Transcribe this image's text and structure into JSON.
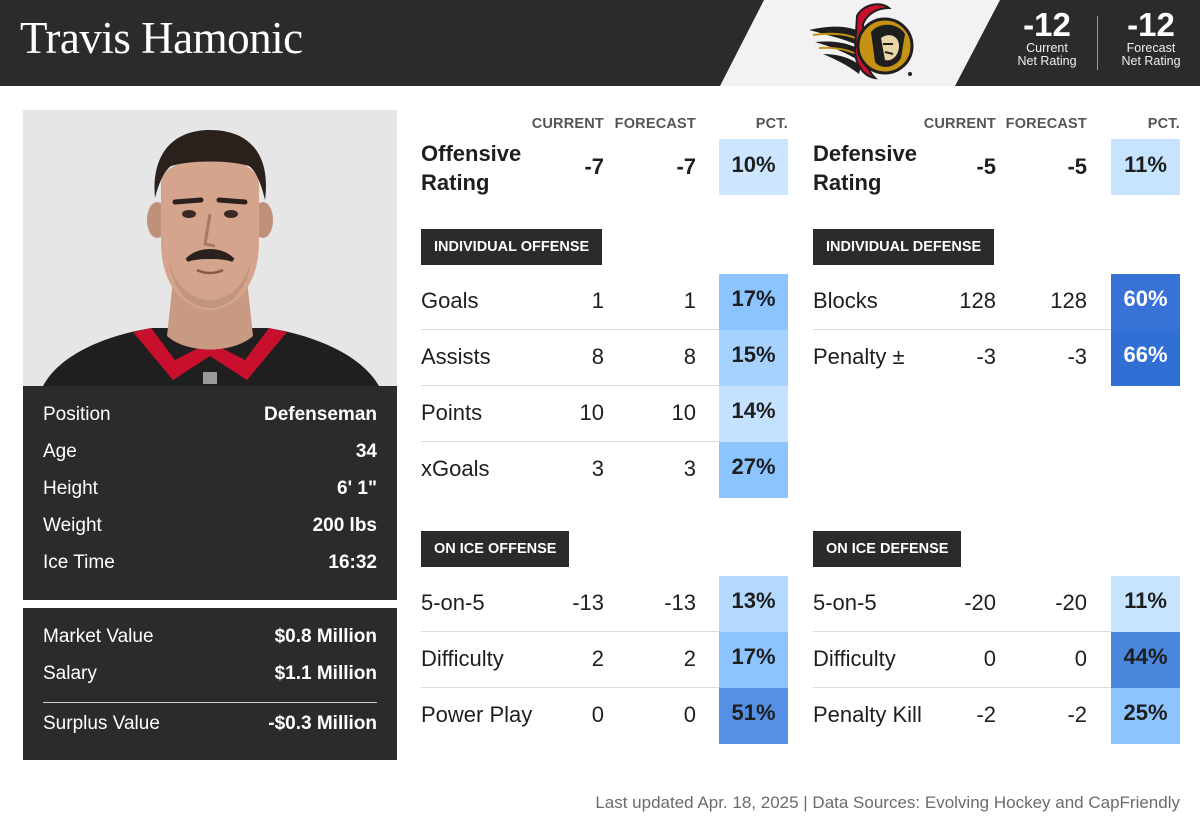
{
  "header": {
    "player_name": "Travis Hamonic",
    "net_rating": {
      "current_value": "-12",
      "current_label_1": "Current",
      "current_label_2": "Net Rating",
      "forecast_value": "-12",
      "forecast_label_1": "Forecast",
      "forecast_label_2": "Net Rating"
    }
  },
  "bio": [
    {
      "label": "Position",
      "value": "Defenseman"
    },
    {
      "label": "Age",
      "value": "34"
    },
    {
      "label": "Height",
      "value": "6' 1\""
    },
    {
      "label": "Weight",
      "value": "200 lbs"
    },
    {
      "label": "Ice Time",
      "value": "16:32"
    }
  ],
  "money": [
    {
      "label": "Market Value",
      "value": "$0.8 Million"
    },
    {
      "label": "Salary",
      "value": "$1.1 Million"
    },
    {
      "label": "Surplus Value",
      "value": "-$0.3 Million"
    }
  ],
  "columns": {
    "current": "CURRENT",
    "forecast": "FORECAST",
    "pct": "PCT."
  },
  "offense": {
    "rating_line1": "Offensive",
    "rating_line2": "Rating",
    "rating_current": "-7",
    "rating_forecast": "-7",
    "rating_pct": "10%",
    "individual_label": "INDIVIDUAL OFFENSE",
    "individual": [
      {
        "name": "Goals",
        "current": "1",
        "forecast": "1",
        "pct": "17%"
      },
      {
        "name": "Assists",
        "current": "8",
        "forecast": "8",
        "pct": "15%"
      },
      {
        "name": "Points",
        "current": "10",
        "forecast": "10",
        "pct": "14%"
      },
      {
        "name": "xGoals",
        "current": "3",
        "forecast": "3",
        "pct": "27%"
      }
    ],
    "onice_label": "ON ICE OFFENSE",
    "onice": [
      {
        "name": "5-on-5",
        "current": "-13",
        "forecast": "-13",
        "pct": "13%"
      },
      {
        "name": "Difficulty",
        "current": "2",
        "forecast": "2",
        "pct": "17%"
      },
      {
        "name": "Power Play",
        "current": "0",
        "forecast": "0",
        "pct": "51%"
      }
    ]
  },
  "defense": {
    "rating_line1": "Defensive",
    "rating_line2": "Rating",
    "rating_current": "-5",
    "rating_forecast": "-5",
    "rating_pct": "11%",
    "individual_label": "INDIVIDUAL DEFENSE",
    "individual": [
      {
        "name": "Blocks",
        "current": "128",
        "forecast": "128",
        "pct": "60%"
      },
      {
        "name": "Penalty ±",
        "current": "-3",
        "forecast": "-3",
        "pct": "66%"
      }
    ],
    "onice_label": "ON ICE DEFENSE",
    "onice": [
      {
        "name": "5-on-5",
        "current": "-20",
        "forecast": "-20",
        "pct": "11%"
      },
      {
        "name": "Difficulty",
        "current": "0",
        "forecast": "0",
        "pct": "44%"
      },
      {
        "name": "Penalty Kill",
        "current": "-2",
        "forecast": "-2",
        "pct": "25%"
      }
    ]
  },
  "percentile_colors": {
    "very_light": "#cce6ff",
    "light": "#b3d9ff",
    "medium": "#8cc4ff",
    "strong": "#4a86dc",
    "strongest": "#3872d6"
  },
  "footer": "Last updated Apr. 18, 2025 | Data Sources: Evolving Hockey and CapFriendly"
}
